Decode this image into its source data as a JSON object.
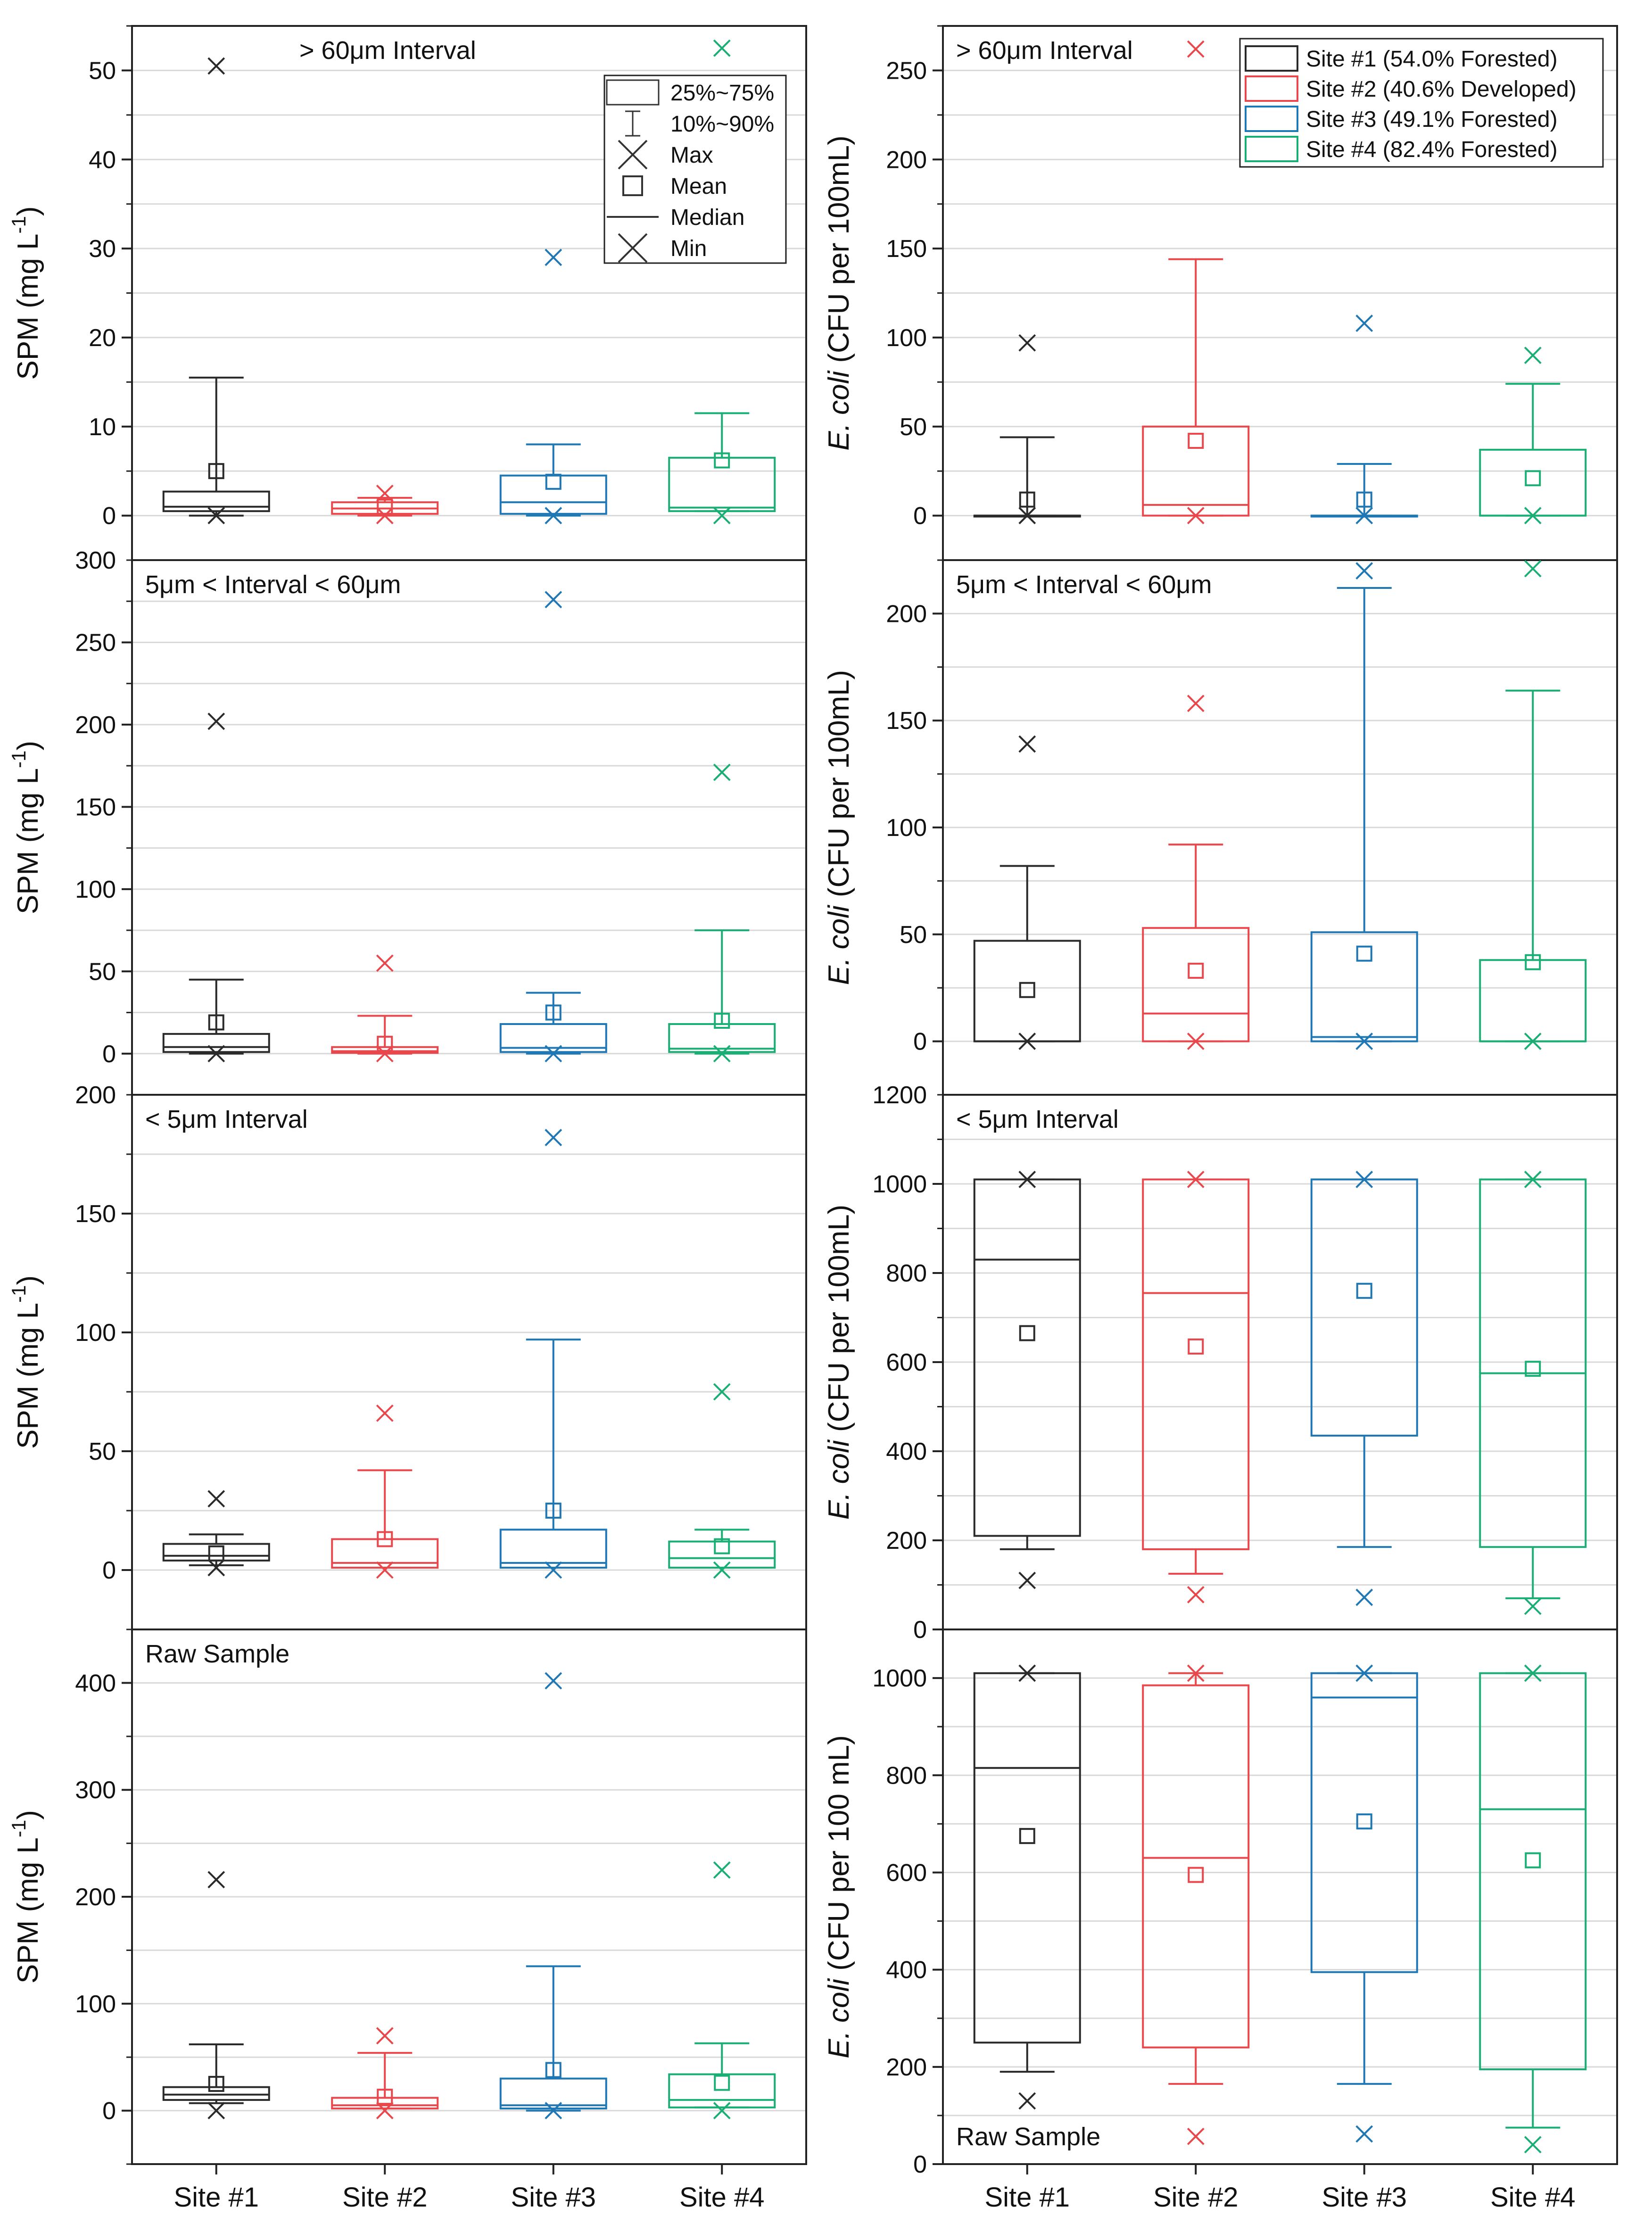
{
  "colors": {
    "site1": "#2a2a2a",
    "site2": "#e8474b",
    "site3": "#1f77b4",
    "site4": "#1aae74",
    "grid": "#d9d9d9"
  },
  "legend_stats": {
    "items": [
      "25%~75%",
      "10%~90%",
      "Max",
      "Mean",
      "Median",
      "Min"
    ]
  },
  "legend_sites": {
    "items": [
      "Site #1 (54.0% Forested)",
      "Site #2 (40.6% Developed)",
      "Site #3 (49.1% Forested)",
      "Site #4 (82.4% Forested)"
    ]
  },
  "x_labels": [
    "Site #1",
    "Site #2",
    "Site #3",
    "Site #4"
  ],
  "chart_data": [
    {
      "type": "box",
      "title": "> 60μm Interval",
      "ylabel_prefix": "SPM (mg L",
      "ylabel_sup": "-1",
      "ylabel_suffix": ")",
      "ylim": [
        -5,
        55
      ],
      "ticks": [
        0,
        10,
        20,
        30,
        40,
        50
      ],
      "tick_labels": [
        "0",
        "10",
        "20",
        "30",
        "40",
        "50"
      ],
      "top_label": "",
      "categories": [
        "Site #1",
        "Site #2",
        "Site #3",
        "Site #4"
      ],
      "series": [
        {
          "name": "Site #1",
          "min": 0,
          "p10": 0,
          "q1": 0.5,
          "median": 1,
          "q3": 2.7,
          "p90": 15.5,
          "max": 50.5,
          "mean": 5
        },
        {
          "name": "Site #2",
          "min": 0,
          "p10": 0,
          "q1": 0.2,
          "median": 0.8,
          "q3": 1.5,
          "p90": 2,
          "max": 2.5,
          "mean": 1
        },
        {
          "name": "Site #3",
          "min": 0,
          "p10": 0,
          "q1": 0.2,
          "median": 1.5,
          "q3": 4.5,
          "p90": 8,
          "max": 29,
          "mean": 3.8
        },
        {
          "name": "Site #4",
          "min": 0,
          "p10": 0.5,
          "q1": 0.5,
          "median": 0.9,
          "q3": 6.5,
          "p90": 11.5,
          "max": 52.5,
          "mean": 6.2
        }
      ]
    },
    {
      "type": "box",
      "title": "> 60μm Interval",
      "ylabel_italic": "E. coli",
      "ylabel_rest": " (CFU per 100mL)",
      "ylim": [
        -25,
        275
      ],
      "ticks": [
        0,
        50,
        100,
        150,
        200,
        250
      ],
      "tick_labels": [
        "0",
        "50",
        "100",
        "150",
        "200",
        "250"
      ],
      "top_label": "",
      "categories": [
        "Site #1",
        "Site #2",
        "Site #3",
        "Site #4"
      ],
      "series": [
        {
          "name": "Site #1",
          "min": 0,
          "p10": 0,
          "q1": 0,
          "median": 0,
          "q3": 0,
          "p90": 44,
          "max": 97,
          "mean": 9
        },
        {
          "name": "Site #2",
          "min": 0,
          "p10": 0,
          "q1": 0,
          "median": 6,
          "q3": 50,
          "p90": 144,
          "max": 262,
          "mean": 42
        },
        {
          "name": "Site #3",
          "min": 0,
          "p10": 0,
          "q1": 0,
          "median": 0,
          "q3": 0,
          "p90": 29,
          "max": 108,
          "mean": 9
        },
        {
          "name": "Site #4",
          "min": 0,
          "p10": 0,
          "q1": 0,
          "median": 0,
          "q3": 37,
          "p90": 74,
          "max": 90,
          "mean": 21
        }
      ]
    },
    {
      "type": "box",
      "title": "5μm < Interval < 60μm",
      "ylabel_prefix": "SPM (mg L",
      "ylabel_sup": "-1",
      "ylabel_suffix": ")",
      "ylim": [
        -25,
        300
      ],
      "ticks": [
        0,
        50,
        100,
        150,
        200,
        250
      ],
      "tick_labels": [
        "0",
        "50",
        "100",
        "150",
        "200",
        "250"
      ],
      "top_label": "300",
      "categories": [
        "Site #1",
        "Site #2",
        "Site #3",
        "Site #4"
      ],
      "series": [
        {
          "name": "Site #1",
          "min": 0,
          "p10": 0,
          "q1": 1,
          "median": 4,
          "q3": 12,
          "p90": 45,
          "max": 202,
          "mean": 19
        },
        {
          "name": "Site #2",
          "min": 0,
          "p10": 0,
          "q1": 0.5,
          "median": 1.5,
          "q3": 4,
          "p90": 23,
          "max": 55,
          "mean": 6
        },
        {
          "name": "Site #3",
          "min": 0,
          "p10": 0,
          "q1": 1,
          "median": 3.5,
          "q3": 18,
          "p90": 37,
          "max": 276,
          "mean": 25
        },
        {
          "name": "Site #4",
          "min": 0,
          "p10": 0,
          "q1": 1,
          "median": 3,
          "q3": 18,
          "p90": 75,
          "max": 171,
          "mean": 20
        }
      ]
    },
    {
      "type": "box",
      "title": "5μm < Interval < 60μm",
      "ylabel_italic": "E. coli",
      "ylabel_rest": " (CFU per 100mL)",
      "ylim": [
        -25,
        225
      ],
      "ticks": [
        0,
        50,
        100,
        150,
        200
      ],
      "tick_labels": [
        "0",
        "50",
        "100",
        "150",
        "200"
      ],
      "top_label": "",
      "categories": [
        "Site #1",
        "Site #2",
        "Site #3",
        "Site #4"
      ],
      "series": [
        {
          "name": "Site #1",
          "min": 0,
          "p10": 0,
          "q1": 0,
          "median": 0,
          "q3": 47,
          "p90": 82,
          "max": 139,
          "mean": 24
        },
        {
          "name": "Site #2",
          "min": 0,
          "p10": 0,
          "q1": 0,
          "median": 13,
          "q3": 53,
          "p90": 92,
          "max": 158,
          "mean": 33
        },
        {
          "name": "Site #3",
          "min": 0,
          "p10": 0,
          "q1": 0,
          "median": 2,
          "q3": 51,
          "p90": 212,
          "max": 220,
          "mean": 41
        },
        {
          "name": "Site #4",
          "min": 0,
          "p10": 0,
          "q1": 0,
          "median": 0,
          "q3": 38,
          "p90": 164,
          "max": 221,
          "mean": 37
        }
      ]
    },
    {
      "type": "box",
      "title": "< 5μm Interval",
      "ylabel_prefix": "SPM (mg L",
      "ylabel_sup": "-1",
      "ylabel_suffix": ")",
      "ylim": [
        -25,
        200
      ],
      "ticks": [
        0,
        50,
        100,
        150
      ],
      "tick_labels": [
        "0",
        "50",
        "100",
        "150"
      ],
      "top_label": "200",
      "categories": [
        "Site #1",
        "Site #2",
        "Site #3",
        "Site #4"
      ],
      "series": [
        {
          "name": "Site #1",
          "min": 1,
          "p10": 2,
          "q1": 4,
          "median": 6,
          "q3": 11,
          "p90": 15,
          "max": 30,
          "mean": 7
        },
        {
          "name": "Site #2",
          "min": 0,
          "p10": 1,
          "q1": 1,
          "median": 3,
          "q3": 13,
          "p90": 42,
          "max": 66,
          "mean": 13
        },
        {
          "name": "Site #3",
          "min": 0,
          "p10": 1,
          "q1": 1,
          "median": 3,
          "q3": 17,
          "p90": 97,
          "max": 182,
          "mean": 25
        },
        {
          "name": "Site #4",
          "min": 0,
          "p10": 1,
          "q1": 1,
          "median": 5,
          "q3": 12,
          "p90": 17,
          "max": 75,
          "mean": 10
        }
      ]
    },
    {
      "type": "box",
      "title": "< 5μm Interval",
      "ylabel_italic": "E. coli",
      "ylabel_rest": " (CFU per 100mL)",
      "ylim": [
        0,
        1200
      ],
      "ticks": [
        0,
        200,
        400,
        600,
        800,
        1000
      ],
      "tick_labels": [
        "0",
        "200",
        "400",
        "600",
        "800",
        "1000"
      ],
      "top_label": "1200",
      "categories": [
        "Site #1",
        "Site #2",
        "Site #3",
        "Site #4"
      ],
      "series": [
        {
          "name": "Site #1",
          "min": 110,
          "p10": 180,
          "q1": 210,
          "median": 830,
          "q3": 1010,
          "p90": 1010,
          "max": 1010,
          "mean": 665
        },
        {
          "name": "Site #2",
          "min": 78,
          "p10": 125,
          "q1": 180,
          "median": 755,
          "q3": 1010,
          "p90": 1010,
          "max": 1010,
          "mean": 635
        },
        {
          "name": "Site #3",
          "min": 72,
          "p10": 185,
          "q1": 435,
          "median": 1010,
          "q3": 1010,
          "p90": 1010,
          "max": 1010,
          "mean": 760
        },
        {
          "name": "Site #4",
          "min": 52,
          "p10": 70,
          "q1": 185,
          "median": 575,
          "q3": 1010,
          "p90": 1010,
          "max": 1010,
          "mean": 585
        }
      ]
    },
    {
      "type": "box",
      "title": "Raw Sample",
      "ylabel_prefix": "SPM (mg L",
      "ylabel_sup": "-1",
      "ylabel_suffix": ")",
      "ylim": [
        -50,
        450
      ],
      "ticks": [
        0,
        100,
        200,
        300,
        400
      ],
      "tick_labels": [
        "0",
        "100",
        "200",
        "300",
        "400"
      ],
      "top_label": "",
      "categories": [
        "Site #1",
        "Site #2",
        "Site #3",
        "Site #4"
      ],
      "series": [
        {
          "name": "Site #1",
          "min": 0,
          "p10": 7,
          "q1": 10,
          "median": 15,
          "q3": 22,
          "p90": 62,
          "max": 216,
          "mean": 25
        },
        {
          "name": "Site #2",
          "min": 0,
          "p10": 2,
          "q1": 2,
          "median": 5,
          "q3": 12,
          "p90": 54,
          "max": 70,
          "mean": 13
        },
        {
          "name": "Site #3",
          "min": 0,
          "p10": 0,
          "q1": 2,
          "median": 5,
          "q3": 30,
          "p90": 135,
          "max": 402,
          "mean": 38
        },
        {
          "name": "Site #4",
          "min": 0,
          "p10": 3,
          "q1": 3,
          "median": 10,
          "q3": 34,
          "p90": 63,
          "max": 225,
          "mean": 26
        }
      ]
    },
    {
      "type": "box",
      "title": "Raw Sample",
      "ylabel_italic": "E. coli",
      "ylabel_rest": " (CFU per 100 mL)",
      "ylim": [
        0,
        1100
      ],
      "ticks": [
        0,
        200,
        400,
        600,
        800,
        1000
      ],
      "tick_labels": [
        "0",
        "200",
        "400",
        "600",
        "800",
        "1000"
      ],
      "top_label": "",
      "title_position": "bottom-left",
      "categories": [
        "Site #1",
        "Site #2",
        "Site #3",
        "Site #4"
      ],
      "series": [
        {
          "name": "Site #1",
          "min": 130,
          "p10": 190,
          "q1": 250,
          "median": 815,
          "q3": 1010,
          "p90": 1010,
          "max": 1010,
          "mean": 675
        },
        {
          "name": "Site #2",
          "min": 57,
          "p10": 165,
          "q1": 240,
          "median": 630,
          "q3": 985,
          "p90": 1010,
          "max": 1010,
          "mean": 595
        },
        {
          "name": "Site #3",
          "min": 62,
          "p10": 165,
          "q1": 395,
          "median": 960,
          "q3": 1010,
          "p90": 1010,
          "max": 1010,
          "mean": 705
        },
        {
          "name": "Site #4",
          "min": 40,
          "p10": 75,
          "q1": 195,
          "median": 730,
          "q3": 1010,
          "p90": 1010,
          "max": 1010,
          "mean": 625
        }
      ]
    }
  ]
}
